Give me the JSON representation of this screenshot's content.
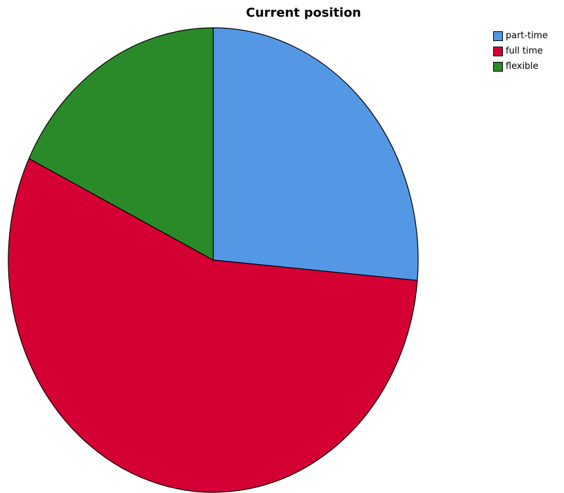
{
  "chart_data": {
    "type": "pie",
    "title": "Current position",
    "slices": [
      {
        "label": "part-time",
        "value": 26.4,
        "color": "#5497E5"
      },
      {
        "label": "full time",
        "value": 55.8,
        "color": "#D40033"
      },
      {
        "label": "flexible",
        "value": 17.8,
        "color": "#2A8A2A"
      }
    ],
    "legend": {
      "position": "top-right",
      "items": [
        "part-time",
        "full time",
        "flexible"
      ]
    },
    "start_angle_deg": 0,
    "direction": "clockwise"
  }
}
